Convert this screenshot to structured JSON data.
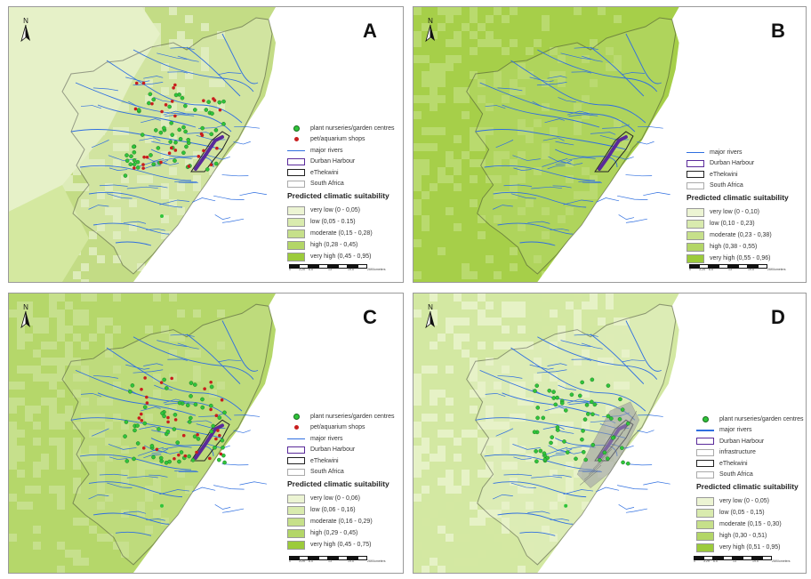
{
  "panels": [
    {
      "id": "A",
      "label": "A",
      "background_color": "#c3dc85",
      "inland_color": "#e2efc2",
      "dots_green": true,
      "dots_red": true,
      "infrastructure": false,
      "legend": {
        "items": [
          {
            "symbol": "green-dot",
            "label": "plant nurseries/garden centres"
          },
          {
            "symbol": "red-dot",
            "label": "pet/aquarium shops"
          },
          {
            "symbol": "blue-line",
            "label": "major rivers"
          },
          {
            "symbol": "purple-box",
            "label": "Durban Harbour"
          },
          {
            "symbol": "dark-box",
            "label": "eThekwini"
          },
          {
            "symbol": "grey-box",
            "label": "South Africa"
          }
        ],
        "title": "Predicted climatic suitability",
        "classes": [
          {
            "label": "very low (0 - 0,05)",
            "color": "#ecf4d3"
          },
          {
            "label": "low (0,05 - 0.15)",
            "color": "#d9ebae"
          },
          {
            "label": "moderate (0,15 - 0,28)",
            "color": "#c6e08a"
          },
          {
            "label": "high (0,28 - 0,45)",
            "color": "#b3d667"
          },
          {
            "label": "very high (0,45 - 0,95)",
            "color": "#9ccb3b"
          }
        ]
      },
      "scale_ticks": [
        "0",
        "3.25",
        "6.5",
        "13",
        "19.5",
        "26",
        "Kilometers"
      ]
    },
    {
      "id": "B",
      "label": "B",
      "background_color": "#a6cf49",
      "inland_color": "#bcdc74",
      "dots_green": false,
      "dots_red": false,
      "infrastructure": false,
      "legend": {
        "items": [
          {
            "symbol": "blue-line",
            "label": "major rivers"
          },
          {
            "symbol": "purple-box",
            "label": "Durban Harbour"
          },
          {
            "symbol": "dark-box",
            "label": "eThekwini"
          },
          {
            "symbol": "grey-box",
            "label": "South Africa"
          }
        ],
        "title": "Predicted climatic suitability",
        "classes": [
          {
            "label": "very low (0 - 0,10)",
            "color": "#ecf4d3"
          },
          {
            "label": "low (0,10 - 0,23)",
            "color": "#d9ebae"
          },
          {
            "label": "moderate (0,23 - 0,38)",
            "color": "#c6e08a"
          },
          {
            "label": "high (0,38 - 0,55)",
            "color": "#b3d667"
          },
          {
            "label": "very high (0,55 - 0,96)",
            "color": "#9ccb3b"
          }
        ]
      },
      "scale_ticks": [
        "0",
        "3.25",
        "6.5",
        "13",
        "19.5",
        "26",
        "Kilometers"
      ]
    },
    {
      "id": "C",
      "label": "C",
      "background_color": "#b5d76a",
      "inland_color": "#c9e292",
      "dots_green": true,
      "dots_red": true,
      "infrastructure": false,
      "legend": {
        "items": [
          {
            "symbol": "green-dot",
            "label": "plant nurseries/garden centres"
          },
          {
            "symbol": "red-dot",
            "label": "pet/aquarium shops"
          },
          {
            "symbol": "blue-line",
            "label": "major rivers"
          },
          {
            "symbol": "purple-box",
            "label": "Durban Harbour"
          },
          {
            "symbol": "dark-box",
            "label": "eThekwini"
          },
          {
            "symbol": "grey-box",
            "label": "South Africa"
          }
        ],
        "title": "Predicted climatic suitability",
        "classes": [
          {
            "label": "very low (0 - 0,06)",
            "color": "#ecf4d3"
          },
          {
            "label": "low (0,06 - 0,16)",
            "color": "#d9ebae"
          },
          {
            "label": "moderate (0,16 - 0,29)",
            "color": "#c6e08a"
          },
          {
            "label": "high (0,29 - 0,45)",
            "color": "#b3d667"
          },
          {
            "label": "very high (0,45 - 0,75)",
            "color": "#9ccb3b"
          }
        ]
      },
      "scale_ticks": [
        "0",
        "3.25",
        "6.5",
        "13",
        "19.5",
        "26",
        "Kilometers"
      ]
    },
    {
      "id": "D",
      "label": "D",
      "background_color": "#d3e8a2",
      "inland_color": "#e9f3cc",
      "dots_green": true,
      "dots_red": false,
      "infrastructure": true,
      "legend": {
        "items": [
          {
            "symbol": "green-dot",
            "label": "plant nurseries/garden centres"
          },
          {
            "symbol": "blue-line",
            "label": "major rivers"
          },
          {
            "symbol": "purple-box",
            "label": "Durban Harbour"
          },
          {
            "symbol": "grey-box",
            "label": "infrastructure"
          },
          {
            "symbol": "dark-box",
            "label": "eThekwini"
          },
          {
            "symbol": "grey-box",
            "label": "South Africa"
          }
        ],
        "title": "Predicted climatic suitability",
        "classes": [
          {
            "label": "very low (0 - 0,05)",
            "color": "#ecf4d3"
          },
          {
            "label": "low (0,05 - 0,15)",
            "color": "#d9ebae"
          },
          {
            "label": "moderate (0,15 - 0,30)",
            "color": "#c6e08a"
          },
          {
            "label": "high (0,30 - 0,51)",
            "color": "#b3d667"
          },
          {
            "label": "very high (0,51 - 0,95)",
            "color": "#9ccb3b"
          }
        ]
      },
      "scale_ticks": [
        "0",
        "3.25",
        "6.5",
        "13",
        "19.5",
        "26",
        "Kilometers"
      ]
    }
  ],
  "north_label": "N",
  "colors": {
    "river": "#2f6fe0",
    "harbour": "#5a2a9a",
    "boundary": "#333333",
    "green_dot": "#2fc43a",
    "red_dot": "#c81e1e",
    "infrastructure": "#777777"
  }
}
